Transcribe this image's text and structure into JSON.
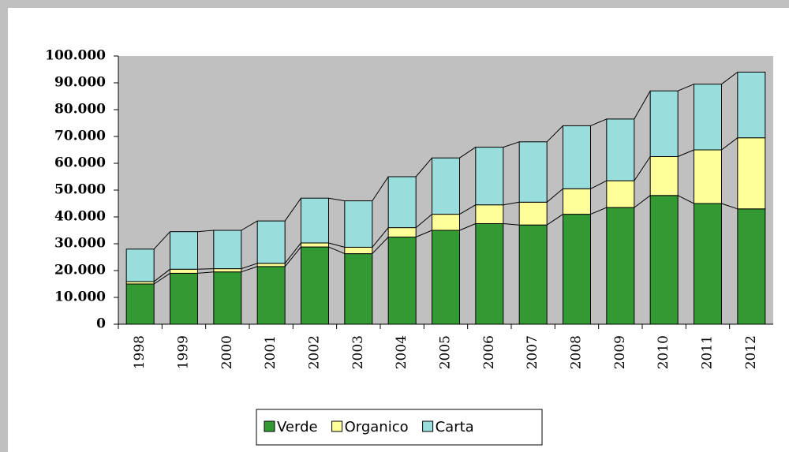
{
  "chart_data": {
    "type": "stacked_bar",
    "categories": [
      "1998",
      "1999",
      "2000",
      "2001",
      "2002",
      "2003",
      "2004",
      "2005",
      "2006",
      "2007",
      "2008",
      "2009",
      "2010",
      "2011",
      "2012"
    ],
    "series": [
      {
        "name": "Verde",
        "color": "#339933",
        "values": [
          15000,
          19000,
          19500,
          21500,
          28800,
          26300,
          32500,
          35000,
          37500,
          37000,
          41000,
          43500,
          48000,
          45000,
          43000
        ]
      },
      {
        "name": "Organico",
        "color": "#ffff99",
        "values": [
          900,
          1500,
          1200,
          1200,
          1500,
          2400,
          3500,
          6000,
          7000,
          8500,
          9500,
          10000,
          14500,
          20000,
          26500
        ]
      },
      {
        "name": "Carta",
        "color": "#99dddd",
        "values": [
          12100,
          14000,
          14300,
          15800,
          16700,
          17300,
          19000,
          21000,
          21500,
          22500,
          23500,
          23000,
          24500,
          24500,
          24500
        ]
      }
    ],
    "ylim": [
      0,
      100000
    ],
    "yticks": [
      0,
      {
        "value": 10000,
        "label": "10.000"
      },
      {
        "value": 20000,
        "label": "20.000"
      },
      {
        "value": 30000,
        "label": "30.000"
      },
      {
        "value": 40000,
        "label": "40.000"
      },
      {
        "value": 50000,
        "label": "50.000"
      },
      {
        "value": 60000,
        "label": "60.000"
      },
      {
        "value": 70000,
        "label": "70.000"
      },
      {
        "value": 80000,
        "label": "80.000"
      },
      {
        "value": 90000,
        "label": "90.000"
      },
      {
        "value": 100000,
        "label": "100.000"
      }
    ],
    "legend": "bottom"
  }
}
